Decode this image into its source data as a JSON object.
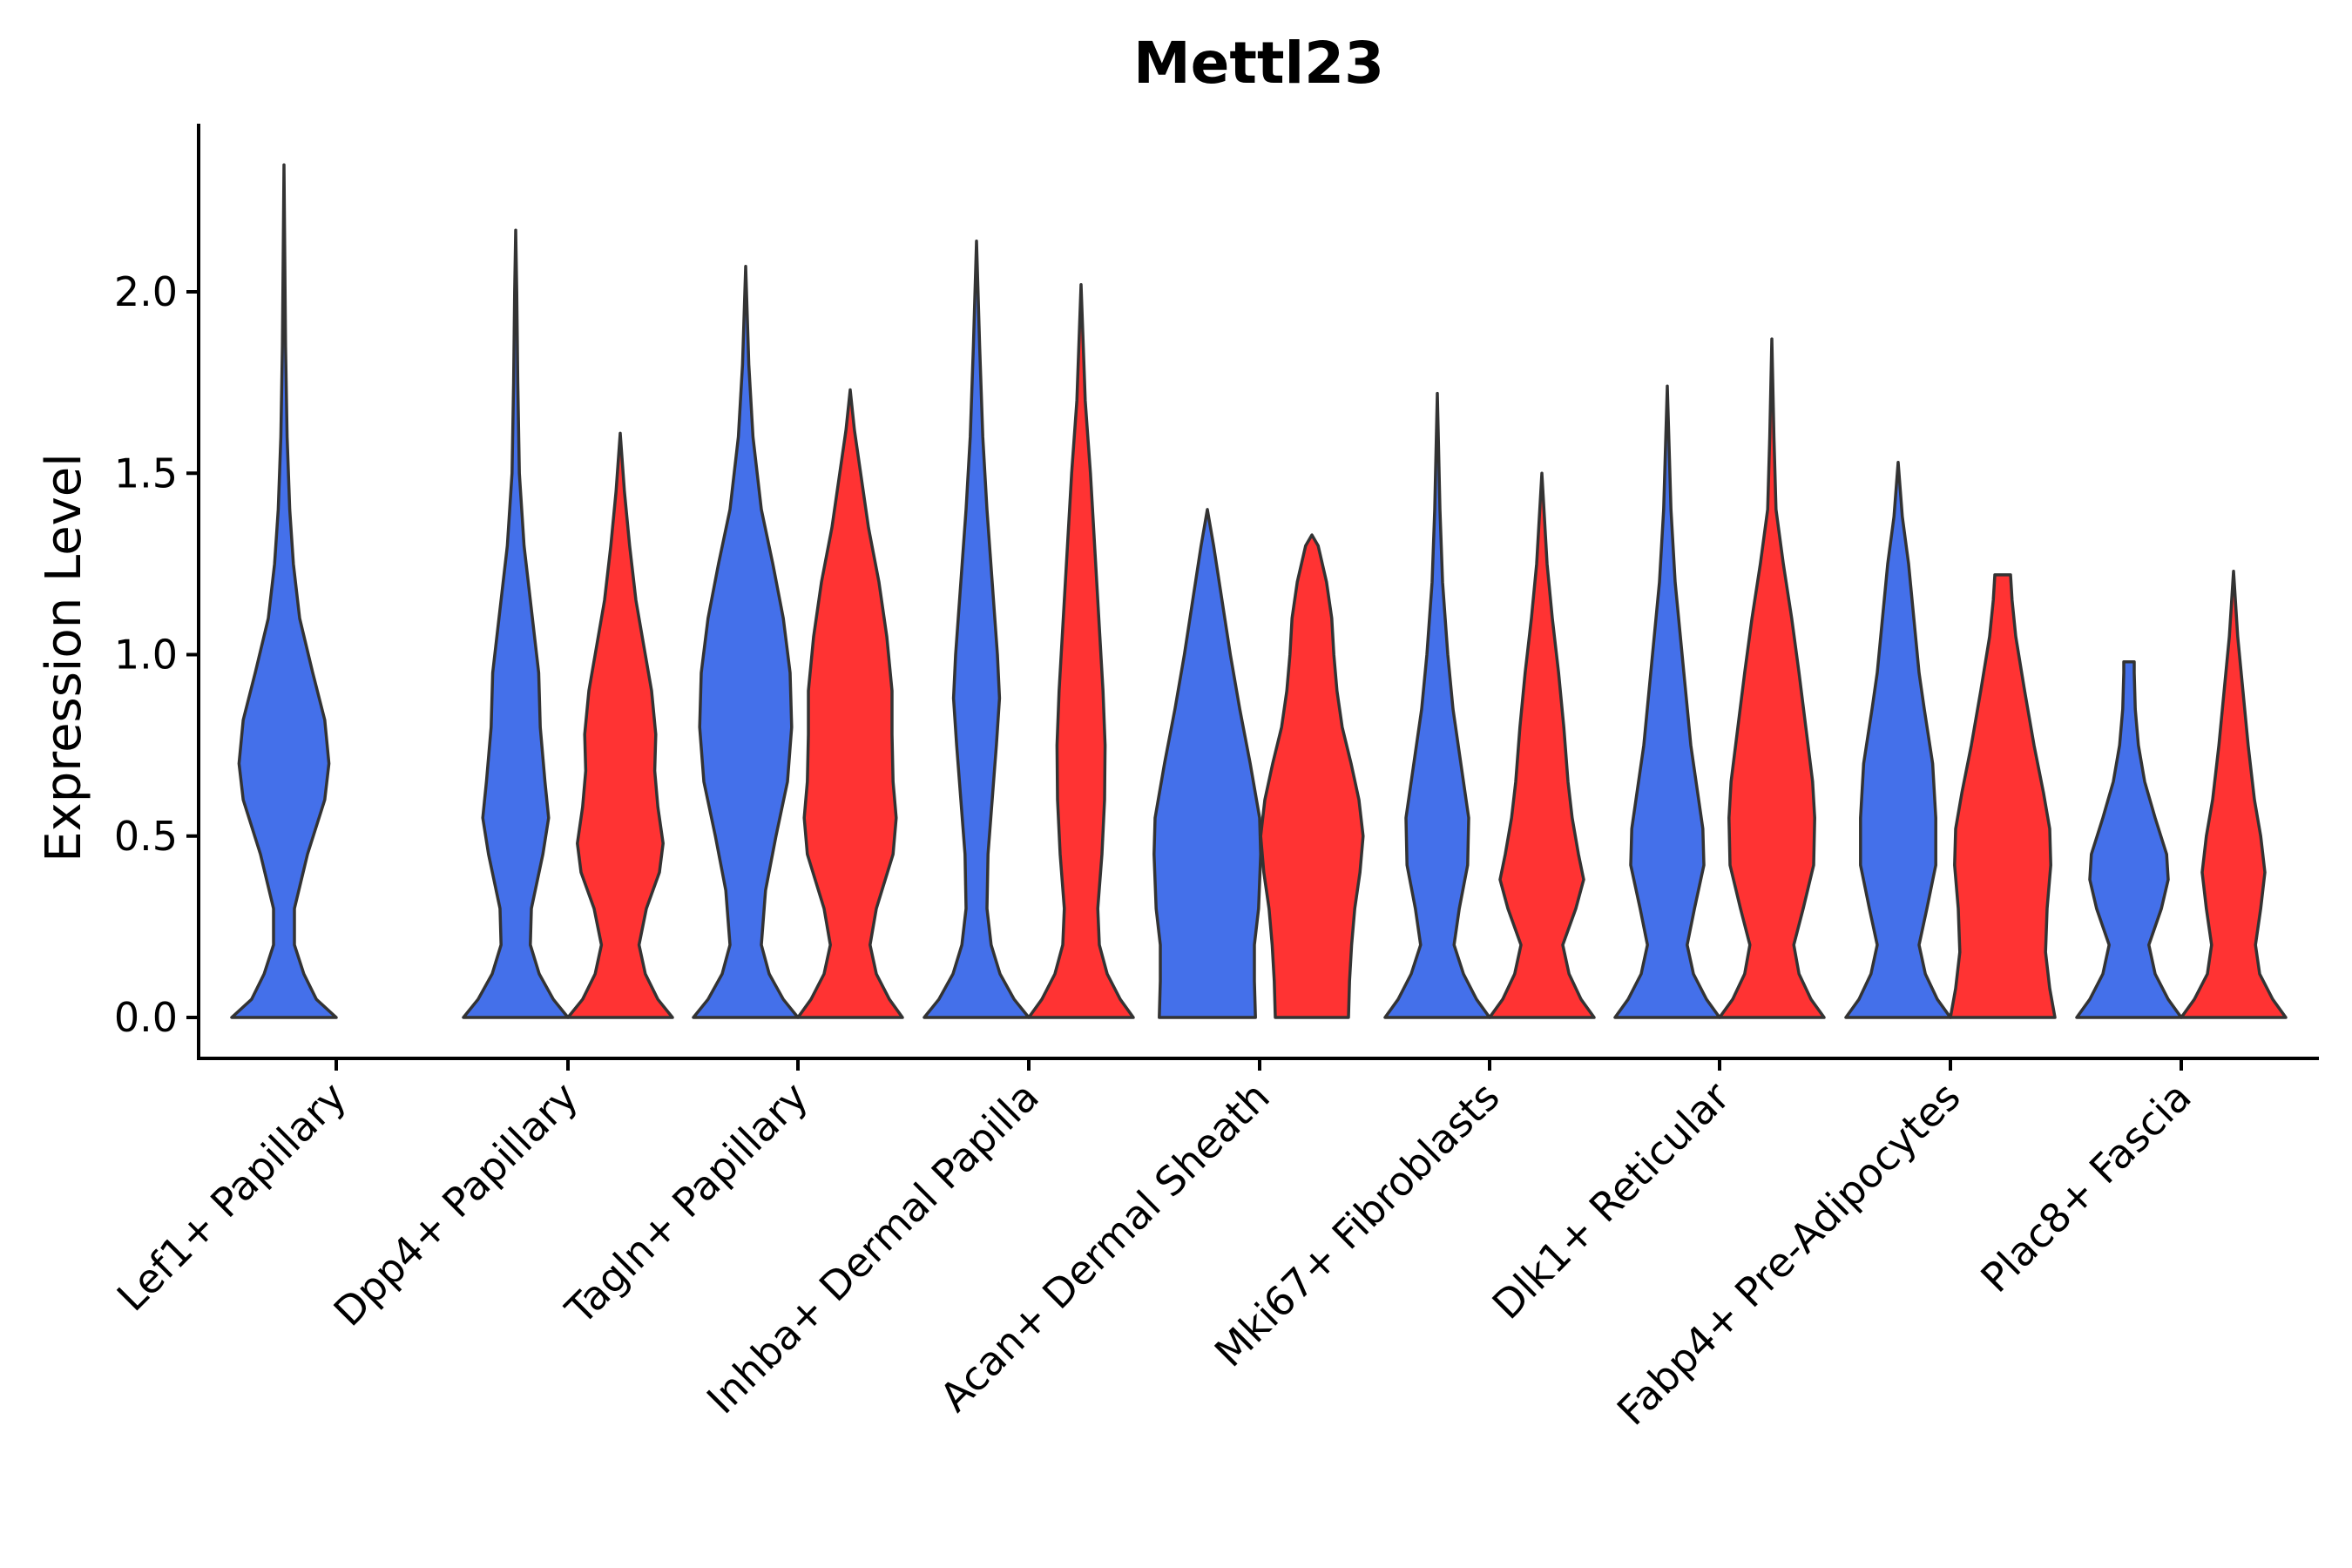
{
  "chart_data": {
    "type": "violin",
    "title": "Mettl23",
    "xlabel": "",
    "ylabel": "Expression Level",
    "ylim": [
      0,
      2.45
    ],
    "yticks": [
      "0.0",
      "0.5",
      "1.0",
      "1.5",
      "2.0"
    ],
    "ytick_values": [
      0,
      0.5,
      1.0,
      1.5,
      2.0
    ],
    "grid": false,
    "legend": "none",
    "categories": [
      "Lef1+ Papillary",
      "Dpp4+ Papillary",
      "Tagln+ Papillary",
      "Inhba+ Dermal Papilla",
      "Acan+ Dermal Sheath",
      "Mki67+ Fibroblasts",
      "Dlk1+ Reticular",
      "Fabp4+ Pre-Adipocytes",
      "Plac8+ Fascia"
    ],
    "colors": {
      "group1": "#4470EA",
      "group2": "#FF3333",
      "outline": "#333333"
    },
    "violins": [
      {
        "category": 0,
        "group": "group1",
        "color": "#4470EA",
        "max": 2.35,
        "profile": [
          [
            0,
            1.0
          ],
          [
            0.05,
            0.62
          ],
          [
            0.12,
            0.38
          ],
          [
            0.2,
            0.2
          ],
          [
            0.3,
            0.2
          ],
          [
            0.45,
            0.45
          ],
          [
            0.6,
            0.78
          ],
          [
            0.7,
            0.86
          ],
          [
            0.82,
            0.78
          ],
          [
            0.95,
            0.55
          ],
          [
            1.1,
            0.3
          ],
          [
            1.25,
            0.18
          ],
          [
            1.4,
            0.11
          ],
          [
            1.6,
            0.06
          ],
          [
            1.85,
            0.03
          ],
          [
            2.1,
            0.015
          ],
          [
            2.35,
            0
          ]
        ]
      },
      {
        "category": 1,
        "group": "group1",
        "color": "#4470EA",
        "max": 2.17,
        "profile": [
          [
            0,
            1.0
          ],
          [
            0.05,
            0.72
          ],
          [
            0.12,
            0.45
          ],
          [
            0.2,
            0.28
          ],
          [
            0.3,
            0.3
          ],
          [
            0.45,
            0.52
          ],
          [
            0.55,
            0.63
          ],
          [
            0.65,
            0.56
          ],
          [
            0.8,
            0.47
          ],
          [
            0.95,
            0.44
          ],
          [
            1.1,
            0.32
          ],
          [
            1.3,
            0.16
          ],
          [
            1.5,
            0.07
          ],
          [
            1.75,
            0.04
          ],
          [
            2.0,
            0.02
          ],
          [
            2.17,
            0
          ]
        ]
      },
      {
        "category": 1,
        "group": "group2",
        "color": "#FF3333",
        "max": 1.61,
        "profile": [
          [
            0,
            1.0
          ],
          [
            0.05,
            0.72
          ],
          [
            0.12,
            0.48
          ],
          [
            0.2,
            0.36
          ],
          [
            0.3,
            0.5
          ],
          [
            0.4,
            0.75
          ],
          [
            0.48,
            0.82
          ],
          [
            0.58,
            0.72
          ],
          [
            0.68,
            0.66
          ],
          [
            0.78,
            0.68
          ],
          [
            0.9,
            0.6
          ],
          [
            1.0,
            0.48
          ],
          [
            1.15,
            0.3
          ],
          [
            1.3,
            0.18
          ],
          [
            1.45,
            0.08
          ],
          [
            1.61,
            0
          ]
        ]
      },
      {
        "category": 2,
        "group": "group1",
        "color": "#4470EA",
        "max": 2.07,
        "profile": [
          [
            0,
            1.0
          ],
          [
            0.05,
            0.72
          ],
          [
            0.12,
            0.45
          ],
          [
            0.2,
            0.3
          ],
          [
            0.35,
            0.38
          ],
          [
            0.5,
            0.58
          ],
          [
            0.65,
            0.8
          ],
          [
            0.8,
            0.88
          ],
          [
            0.95,
            0.85
          ],
          [
            1.1,
            0.72
          ],
          [
            1.25,
            0.52
          ],
          [
            1.4,
            0.3
          ],
          [
            1.6,
            0.14
          ],
          [
            1.8,
            0.06
          ],
          [
            2.07,
            0
          ]
        ]
      },
      {
        "category": 2,
        "group": "group2",
        "color": "#FF3333",
        "max": 1.73,
        "profile": [
          [
            0,
            1.0
          ],
          [
            0.05,
            0.75
          ],
          [
            0.12,
            0.5
          ],
          [
            0.2,
            0.38
          ],
          [
            0.3,
            0.5
          ],
          [
            0.45,
            0.82
          ],
          [
            0.55,
            0.88
          ],
          [
            0.65,
            0.82
          ],
          [
            0.78,
            0.8
          ],
          [
            0.9,
            0.8
          ],
          [
            1.05,
            0.7
          ],
          [
            1.2,
            0.55
          ],
          [
            1.35,
            0.35
          ],
          [
            1.5,
            0.2
          ],
          [
            1.62,
            0.08
          ],
          [
            1.73,
            0
          ]
        ]
      },
      {
        "category": 3,
        "group": "group1",
        "color": "#4470EA",
        "max": 2.14,
        "profile": [
          [
            0,
            1.0
          ],
          [
            0.05,
            0.72
          ],
          [
            0.12,
            0.45
          ],
          [
            0.2,
            0.28
          ],
          [
            0.3,
            0.2
          ],
          [
            0.45,
            0.22
          ],
          [
            0.6,
            0.3
          ],
          [
            0.75,
            0.38
          ],
          [
            0.88,
            0.44
          ],
          [
            1.0,
            0.4
          ],
          [
            1.2,
            0.3
          ],
          [
            1.4,
            0.2
          ],
          [
            1.6,
            0.12
          ],
          [
            1.85,
            0.06
          ],
          [
            2.14,
            0
          ]
        ]
      },
      {
        "category": 3,
        "group": "group2",
        "color": "#FF3333",
        "max": 2.02,
        "profile": [
          [
            0,
            1.0
          ],
          [
            0.05,
            0.75
          ],
          [
            0.12,
            0.5
          ],
          [
            0.2,
            0.35
          ],
          [
            0.3,
            0.32
          ],
          [
            0.45,
            0.4
          ],
          [
            0.6,
            0.45
          ],
          [
            0.75,
            0.46
          ],
          [
            0.9,
            0.42
          ],
          [
            1.05,
            0.36
          ],
          [
            1.2,
            0.3
          ],
          [
            1.35,
            0.24
          ],
          [
            1.5,
            0.18
          ],
          [
            1.7,
            0.08
          ],
          [
            2.02,
            0
          ]
        ]
      },
      {
        "category": 4,
        "group": "group1",
        "color": "#4470EA",
        "max": 1.4,
        "profile": [
          [
            0,
            0.92
          ],
          [
            0.1,
            0.9
          ],
          [
            0.2,
            0.9
          ],
          [
            0.3,
            0.98
          ],
          [
            0.45,
            1.02
          ],
          [
            0.55,
            1.0
          ],
          [
            0.7,
            0.82
          ],
          [
            0.85,
            0.62
          ],
          [
            1.0,
            0.44
          ],
          [
            1.15,
            0.28
          ],
          [
            1.3,
            0.12
          ],
          [
            1.4,
            0
          ]
        ]
      },
      {
        "category": 4,
        "group": "group2",
        "color": "#FF3333",
        "max": 1.33,
        "profile": [
          [
            0,
            0.7
          ],
          [
            0.1,
            0.72
          ],
          [
            0.2,
            0.76
          ],
          [
            0.3,
            0.82
          ],
          [
            0.4,
            0.92
          ],
          [
            0.5,
            0.98
          ],
          [
            0.6,
            0.9
          ],
          [
            0.7,
            0.75
          ],
          [
            0.8,
            0.58
          ],
          [
            0.9,
            0.48
          ],
          [
            1.0,
            0.42
          ],
          [
            1.1,
            0.38
          ],
          [
            1.2,
            0.28
          ],
          [
            1.3,
            0.12
          ],
          [
            1.33,
            0
          ]
        ]
      },
      {
        "category": 5,
        "group": "group1",
        "color": "#4470EA",
        "max": 1.72,
        "profile": [
          [
            0,
            1.0
          ],
          [
            0.05,
            0.75
          ],
          [
            0.12,
            0.5
          ],
          [
            0.2,
            0.32
          ],
          [
            0.3,
            0.42
          ],
          [
            0.42,
            0.58
          ],
          [
            0.55,
            0.6
          ],
          [
            0.7,
            0.45
          ],
          [
            0.85,
            0.3
          ],
          [
            1.0,
            0.2
          ],
          [
            1.2,
            0.1
          ],
          [
            1.4,
            0.05
          ],
          [
            1.72,
            0
          ]
        ]
      },
      {
        "category": 5,
        "group": "group2",
        "color": "#FF3333",
        "max": 1.5,
        "profile": [
          [
            0,
            1.0
          ],
          [
            0.05,
            0.75
          ],
          [
            0.12,
            0.52
          ],
          [
            0.2,
            0.4
          ],
          [
            0.3,
            0.65
          ],
          [
            0.38,
            0.8
          ],
          [
            0.45,
            0.7
          ],
          [
            0.55,
            0.58
          ],
          [
            0.65,
            0.5
          ],
          [
            0.8,
            0.42
          ],
          [
            0.95,
            0.32
          ],
          [
            1.1,
            0.2
          ],
          [
            1.25,
            0.1
          ],
          [
            1.5,
            0
          ]
        ]
      },
      {
        "category": 6,
        "group": "group1",
        "color": "#4470EA",
        "max": 1.74,
        "profile": [
          [
            0,
            1.0
          ],
          [
            0.05,
            0.75
          ],
          [
            0.12,
            0.5
          ],
          [
            0.2,
            0.38
          ],
          [
            0.3,
            0.52
          ],
          [
            0.42,
            0.7
          ],
          [
            0.52,
            0.68
          ],
          [
            0.62,
            0.58
          ],
          [
            0.75,
            0.45
          ],
          [
            0.9,
            0.35
          ],
          [
            1.05,
            0.25
          ],
          [
            1.2,
            0.15
          ],
          [
            1.4,
            0.07
          ],
          [
            1.74,
            0
          ]
        ]
      },
      {
        "category": 6,
        "group": "group2",
        "color": "#FF3333",
        "max": 1.87,
        "profile": [
          [
            0,
            1.0
          ],
          [
            0.05,
            0.75
          ],
          [
            0.12,
            0.52
          ],
          [
            0.2,
            0.42
          ],
          [
            0.3,
            0.6
          ],
          [
            0.42,
            0.8
          ],
          [
            0.55,
            0.82
          ],
          [
            0.65,
            0.78
          ],
          [
            0.8,
            0.65
          ],
          [
            0.95,
            0.52
          ],
          [
            1.1,
            0.38
          ],
          [
            1.25,
            0.22
          ],
          [
            1.4,
            0.08
          ],
          [
            1.6,
            0.04
          ],
          [
            1.87,
            0
          ]
        ]
      },
      {
        "category": 7,
        "group": "group1",
        "color": "#4470EA",
        "max": 1.53,
        "profile": [
          [
            0,
            1.0
          ],
          [
            0.05,
            0.75
          ],
          [
            0.12,
            0.52
          ],
          [
            0.2,
            0.4
          ],
          [
            0.3,
            0.55
          ],
          [
            0.42,
            0.72
          ],
          [
            0.55,
            0.72
          ],
          [
            0.7,
            0.66
          ],
          [
            0.85,
            0.5
          ],
          [
            0.95,
            0.4
          ],
          [
            1.1,
            0.3
          ],
          [
            1.25,
            0.2
          ],
          [
            1.38,
            0.08
          ],
          [
            1.53,
            0
          ]
        ]
      },
      {
        "category": 7,
        "group": "group2",
        "color": "#FF3333",
        "max": 1.22,
        "profile": [
          [
            0,
            1.0
          ],
          [
            0.08,
            0.9
          ],
          [
            0.18,
            0.82
          ],
          [
            0.3,
            0.85
          ],
          [
            0.42,
            0.92
          ],
          [
            0.52,
            0.9
          ],
          [
            0.62,
            0.78
          ],
          [
            0.75,
            0.6
          ],
          [
            0.9,
            0.42
          ],
          [
            1.05,
            0.25
          ],
          [
            1.15,
            0.18
          ],
          [
            1.22,
            0.15
          ]
        ]
      },
      {
        "category": 8,
        "group": "group1",
        "color": "#4470EA",
        "max": 0.98,
        "profile": [
          [
            0,
            1.0
          ],
          [
            0.05,
            0.75
          ],
          [
            0.12,
            0.5
          ],
          [
            0.2,
            0.38
          ],
          [
            0.3,
            0.62
          ],
          [
            0.38,
            0.75
          ],
          [
            0.45,
            0.72
          ],
          [
            0.55,
            0.5
          ],
          [
            0.65,
            0.3
          ],
          [
            0.75,
            0.18
          ],
          [
            0.85,
            0.12
          ],
          [
            0.95,
            0.1
          ],
          [
            0.98,
            0.1
          ]
        ]
      },
      {
        "category": 8,
        "group": "group2",
        "color": "#FF3333",
        "max": 1.23,
        "profile": [
          [
            0,
            1.0
          ],
          [
            0.05,
            0.75
          ],
          [
            0.12,
            0.5
          ],
          [
            0.2,
            0.42
          ],
          [
            0.3,
            0.52
          ],
          [
            0.4,
            0.6
          ],
          [
            0.5,
            0.52
          ],
          [
            0.6,
            0.4
          ],
          [
            0.75,
            0.28
          ],
          [
            0.9,
            0.18
          ],
          [
            1.05,
            0.08
          ],
          [
            1.23,
            0
          ]
        ]
      }
    ]
  }
}
